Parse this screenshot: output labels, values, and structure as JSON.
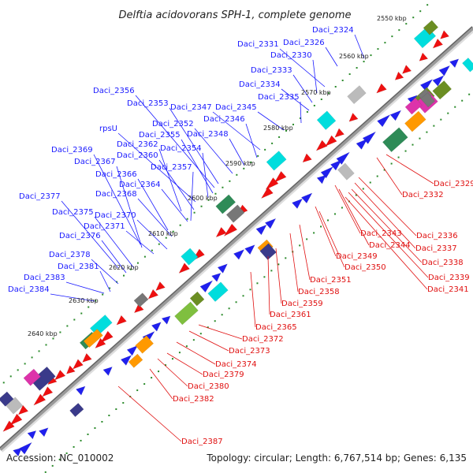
{
  "title": "Delftia acidovorans SPH-1, complete genome",
  "footer": {
    "accession": "Accession: NC_010002",
    "summary": "Topology: circular; Length: 6,767,514 bp; Genes: 6,135"
  },
  "colors": {
    "forward_gene": "#2020ee",
    "reverse_gene": "#ee1010",
    "backbone": "#999999",
    "tick": "#2a8a2a",
    "blue_label": "#1a1aff",
    "red_label": "#e01010"
  },
  "kbp_marks": [
    "2550 kbp",
    "2560 kbp",
    "2570 kbp",
    "2580 kbp",
    "2590 kbp",
    "2600 kbp",
    "2610 kbp",
    "2620 kbp",
    "2630 kbp",
    "2640 kbp"
  ],
  "blue_labels": [
    "Daci_2324",
    "Daci_2326",
    "Daci_2331",
    "Daci_2330",
    "Daci_2333",
    "Daci_2334",
    "Daci_2335",
    "Daci_2345",
    "Daci_2356",
    "Daci_2353",
    "Daci_2347",
    "Daci_2346",
    "Daci_2352",
    "Daci_2348",
    "rpsU",
    "Daci_2355",
    "Daci_2362",
    "Daci_2354",
    "Daci_2369",
    "Daci_2360",
    "Daci_2367",
    "Daci_2357",
    "Daci_2366",
    "Daci_2364",
    "Daci_2368",
    "Daci_2377",
    "Daci_2375",
    "Daci_2370",
    "Daci_2371",
    "Daci_2376",
    "Daci_2378",
    "Daci_2381",
    "Daci_2383",
    "Daci_2384"
  ],
  "red_labels": [
    "Daci_2329",
    "Daci_2332",
    "Daci_2336",
    "Daci_2343",
    "Daci_2337",
    "Daci_2344",
    "Daci_2338",
    "Daci_2349",
    "Daci_2339",
    "Daci_2350",
    "Daci_2341",
    "Daci_2351",
    "Daci_2358",
    "Daci_2359",
    "Daci_2361",
    "Daci_2365",
    "Daci_2372",
    "Daci_2373",
    "Daci_2374",
    "Daci_2379",
    "Daci_2380",
    "Daci_2382",
    "Daci_2387"
  ]
}
